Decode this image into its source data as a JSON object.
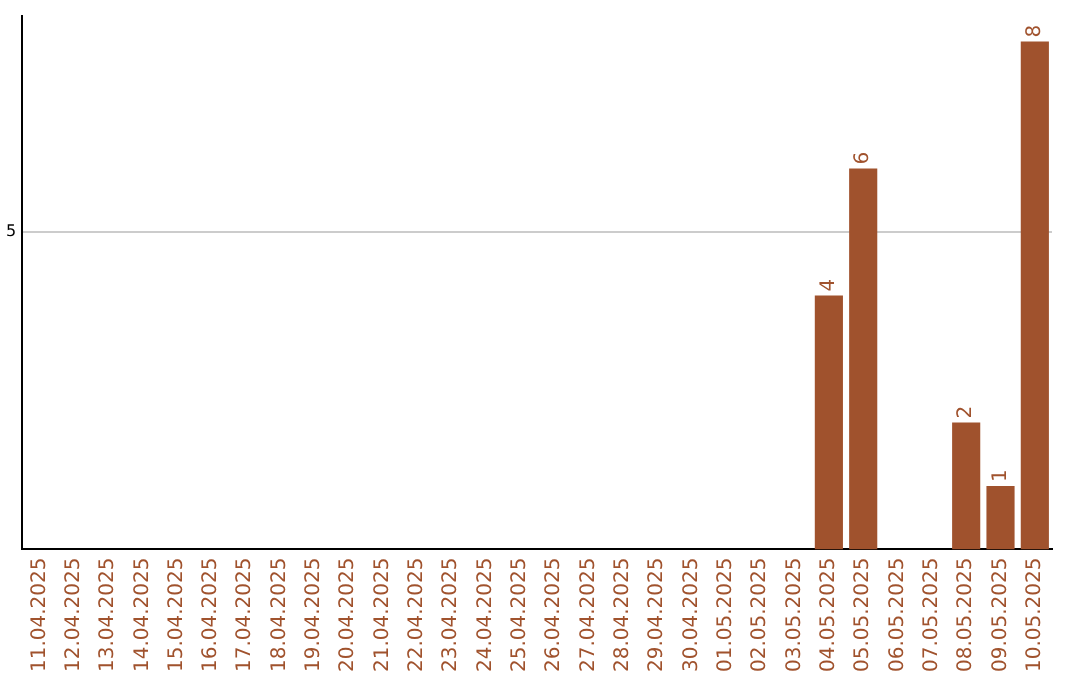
{
  "chart_data": {
    "type": "bar",
    "categories": [
      "11.04.2025",
      "12.04.2025",
      "13.04.2025",
      "14.04.2025",
      "15.04.2025",
      "16.04.2025",
      "17.04.2025",
      "18.04.2025",
      "19.04.2025",
      "20.04.2025",
      "21.04.2025",
      "22.04.2025",
      "23.04.2025",
      "24.04.2025",
      "25.04.2025",
      "26.04.2025",
      "27.04.2025",
      "28.04.2025",
      "29.04.2025",
      "30.04.2025",
      "01.05.2025",
      "02.05.2025",
      "03.05.2025",
      "04.05.2025",
      "05.05.2025",
      "06.05.2025",
      "07.05.2025",
      "08.05.2025",
      "09.05.2025",
      "10.05.2025"
    ],
    "values": [
      null,
      null,
      null,
      null,
      null,
      null,
      null,
      null,
      null,
      null,
      null,
      null,
      null,
      null,
      null,
      null,
      null,
      null,
      null,
      null,
      null,
      null,
      null,
      4,
      6,
      null,
      null,
      2,
      1,
      8
    ],
    "data_labels": true,
    "color": "#a0522d",
    "ylim": [
      0,
      8.4
    ],
    "yticks": [
      5
    ],
    "grid": "y",
    "legend": false
  }
}
